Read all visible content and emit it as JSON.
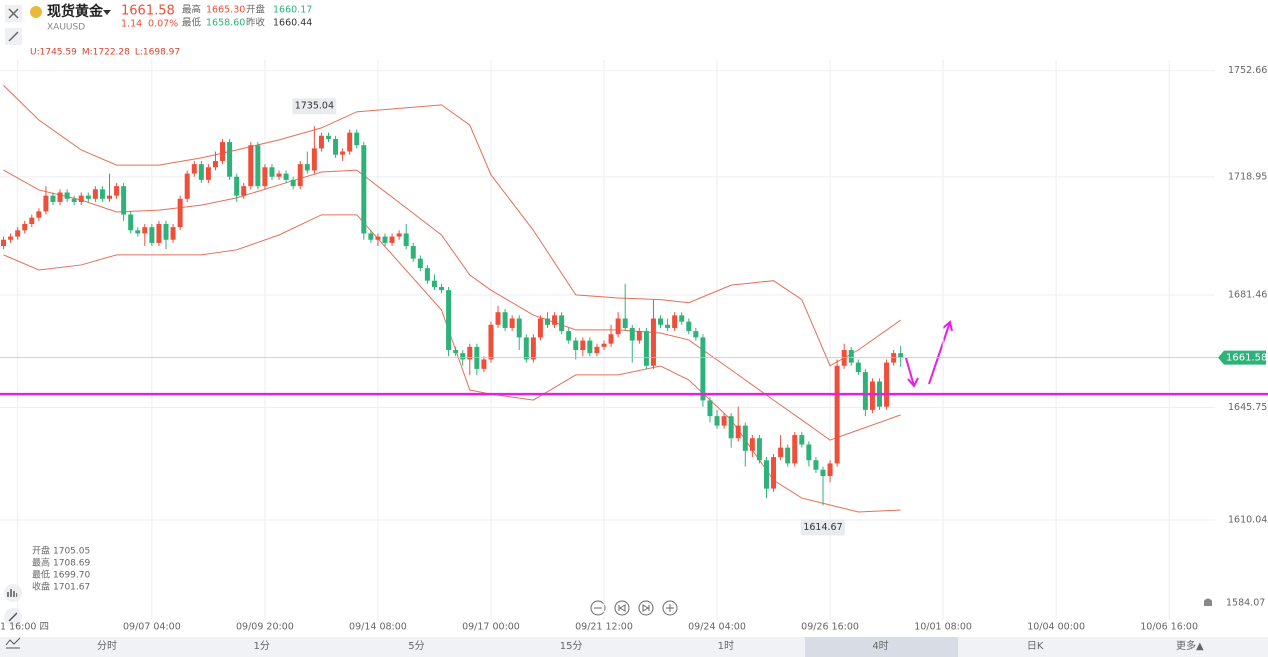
{
  "header": {
    "name": "现货黄金",
    "symbol": "XAUUSD",
    "change": "1.14",
    "change_pct": "0.07%",
    "stats": [
      [
        "最高",
        "1665.30"
      ],
      [
        "开盘",
        "1660.17"
      ],
      [
        "最低",
        "1658.60"
      ],
      [
        "昨收",
        "1660.44"
      ]
    ]
  },
  "boll": [
    "U:1745.59",
    "M:1722.28",
    "L:1698.97"
  ],
  "info": [
    [
      "开盘",
      "1705.05"
    ],
    [
      "最高",
      "1708.69"
    ],
    [
      "最低",
      "1699.70"
    ],
    [
      "收盘",
      "1701.67"
    ]
  ],
  "tabs": [
    "分时",
    "1分",
    "5分",
    "15分",
    "1时",
    "4时",
    "日K",
    "更多▲"
  ],
  "chart_data": {
    "type": "candlestick",
    "up_color": "#ee4f3b",
    "down_color": "#2fb27a",
    "xlim": [
      -0.5,
      170.5
    ],
    "ylim": [
      1578.3,
      1762.4
    ],
    "yticks": [
      1610.04,
      1645.75,
      1681.46,
      1718.95,
      1752.66
    ],
    "xticks": [
      {
        "value": 2,
        "label": "1 16:00 四"
      },
      {
        "value": 21,
        "label": "09/07 04:00"
      },
      {
        "value": 37,
        "label": "09/09 20:00"
      },
      {
        "value": 53,
        "label": "09/14 08:00"
      },
      {
        "value": 69,
        "label": "09/17 00:00"
      },
      {
        "value": 85,
        "label": "09/21 12:00"
      },
      {
        "value": 101,
        "label": "09/24 04:00"
      },
      {
        "value": 117,
        "label": "09/26 16:00"
      },
      {
        "value": 133,
        "label": "10/01 08:00"
      },
      {
        "value": 149,
        "label": "10/04 00:00"
      },
      {
        "value": 165,
        "label": "10/06 16:00"
      }
    ],
    "grid": true,
    "bottom_price": 1584.07,
    "hlines": [
      {
        "value": 1650,
        "color": "#e61ee6"
      }
    ],
    "ohlc": [
      [
        1697,
        1700,
        1696,
        1699
      ],
      [
        1699,
        1701,
        1698,
        1700
      ],
      [
        1700,
        1703,
        1699,
        1702
      ],
      [
        1702,
        1705,
        1701,
        1704
      ],
      [
        1704,
        1707,
        1703,
        1706
      ],
      [
        1706,
        1709,
        1705,
        1708
      ],
      [
        1708,
        1716,
        1707,
        1713
      ],
      [
        1713,
        1714,
        1710,
        1711
      ],
      [
        1711,
        1715,
        1710,
        1714
      ],
      [
        1714,
        1715,
        1711,
        1712
      ],
      [
        1712,
        1713,
        1710,
        1711
      ],
      [
        1711,
        1714,
        1710,
        1713
      ],
      [
        1713,
        1714,
        1711,
        1712
      ],
      [
        1712,
        1716,
        1711,
        1715
      ],
      [
        1715,
        1716,
        1711,
        1712
      ],
      [
        1712,
        1720,
        1711,
        1713
      ],
      [
        1713,
        1717,
        1712,
        1716
      ],
      [
        1716,
        1717,
        1705,
        1707
      ],
      [
        1707,
        1708,
        1701,
        1702
      ],
      [
        1702,
        1703,
        1700,
        1701
      ],
      [
        1701,
        1704,
        1697,
        1703
      ],
      [
        1703,
        1704,
        1697,
        1698
      ],
      [
        1698,
        1705,
        1697,
        1704
      ],
      [
        1704,
        1705,
        1696,
        1699
      ],
      [
        1699,
        1704,
        1698,
        1703
      ],
      [
        1703,
        1713,
        1702,
        1712
      ],
      [
        1712,
        1721,
        1711,
        1720
      ],
      [
        1720,
        1724,
        1719,
        1723
      ],
      [
        1723,
        1724,
        1717,
        1718
      ],
      [
        1718,
        1723,
        1717,
        1722
      ],
      [
        1722,
        1727,
        1721,
        1724
      ],
      [
        1724,
        1731,
        1723,
        1730
      ],
      [
        1730,
        1731,
        1718,
        1719
      ],
      [
        1719,
        1720,
        1711,
        1713
      ],
      [
        1713,
        1717,
        1712,
        1716
      ],
      [
        1716,
        1730,
        1715,
        1729
      ],
      [
        1729,
        1730,
        1715,
        1716
      ],
      [
        1716,
        1723,
        1715,
        1722
      ],
      [
        1722,
        1723,
        1718,
        1719
      ],
      [
        1719,
        1721,
        1718,
        1720
      ],
      [
        1720,
        1721,
        1717,
        1718
      ],
      [
        1718,
        1719,
        1715,
        1716
      ],
      [
        1716,
        1724,
        1715,
        1723
      ],
      [
        1723,
        1727,
        1720,
        1721
      ],
      [
        1721,
        1735.04,
        1720,
        1728
      ],
      [
        1728,
        1733,
        1727,
        1732
      ],
      [
        1732,
        1733,
        1730,
        1731
      ],
      [
        1731,
        1732,
        1725,
        1726
      ],
      [
        1726,
        1728,
        1724,
        1727
      ],
      [
        1727,
        1734,
        1726,
        1733
      ],
      [
        1733,
        1734,
        1728,
        1729
      ],
      [
        1729,
        1730,
        1699,
        1701
      ],
      [
        1701,
        1702,
        1698,
        1699
      ],
      [
        1699,
        1701,
        1697,
        1700
      ],
      [
        1700,
        1701,
        1697,
        1698
      ],
      [
        1698,
        1701,
        1697,
        1700
      ],
      [
        1700,
        1702,
        1699,
        1701
      ],
      [
        1701,
        1704,
        1696,
        1697
      ],
      [
        1697,
        1698,
        1692,
        1693
      ],
      [
        1693,
        1694,
        1689,
        1690
      ],
      [
        1690,
        1691,
        1685,
        1686
      ],
      [
        1686,
        1688,
        1683,
        1684
      ],
      [
        1684,
        1685,
        1682,
        1683
      ],
      [
        1683,
        1684,
        1662,
        1664
      ],
      [
        1664,
        1665,
        1662,
        1663
      ],
      [
        1663,
        1664,
        1659,
        1661
      ],
      [
        1661,
        1666,
        1656,
        1665
      ],
      [
        1665,
        1666,
        1656,
        1658
      ],
      [
        1658,
        1662,
        1657,
        1661
      ],
      [
        1661,
        1673,
        1660,
        1672
      ],
      [
        1672,
        1678,
        1671,
        1676
      ],
      [
        1676,
        1677,
        1670,
        1671
      ],
      [
        1671,
        1675,
        1670,
        1674
      ],
      [
        1674,
        1675,
        1664,
        1668
      ],
      [
        1668,
        1669,
        1660,
        1661
      ],
      [
        1661,
        1669,
        1660,
        1668
      ],
      [
        1668,
        1675,
        1667,
        1674
      ],
      [
        1674,
        1676,
        1671,
        1672
      ],
      [
        1672,
        1676,
        1671,
        1675
      ],
      [
        1675,
        1676,
        1669,
        1670
      ],
      [
        1670,
        1671,
        1666,
        1667
      ],
      [
        1667,
        1668,
        1661,
        1664
      ],
      [
        1664,
        1668,
        1662,
        1667
      ],
      [
        1667,
        1668,
        1662,
        1663
      ],
      [
        1663,
        1666,
        1662,
        1665
      ],
      [
        1665,
        1667,
        1664,
        1666
      ],
      [
        1666,
        1672,
        1665,
        1669
      ],
      [
        1669,
        1676,
        1668,
        1674
      ],
      [
        1674,
        1685,
        1670,
        1671
      ],
      [
        1671,
        1672,
        1660,
        1667
      ],
      [
        1667,
        1671,
        1666,
        1670
      ],
      [
        1670,
        1671,
        1658,
        1659
      ],
      [
        1659,
        1680,
        1658,
        1674
      ],
      [
        1674,
        1675,
        1671,
        1672
      ],
      [
        1672,
        1674,
        1670,
        1671
      ],
      [
        1671,
        1676,
        1670,
        1675
      ],
      [
        1675,
        1676,
        1672,
        1673
      ],
      [
        1673,
        1674,
        1669,
        1670
      ],
      [
        1670,
        1671,
        1667,
        1668
      ],
      [
        1668,
        1669,
        1646,
        1648
      ],
      [
        1648,
        1649,
        1641,
        1643
      ],
      [
        1643,
        1645,
        1639,
        1640
      ],
      [
        1640,
        1644,
        1639,
        1643
      ],
      [
        1643,
        1644,
        1633,
        1636
      ],
      [
        1636,
        1646,
        1635,
        1640
      ],
      [
        1640,
        1641,
        1627,
        1632
      ],
      [
        1632,
        1637,
        1630,
        1636
      ],
      [
        1636,
        1637,
        1628,
        1629
      ],
      [
        1629,
        1630,
        1617,
        1620
      ],
      [
        1620,
        1631,
        1619,
        1630
      ],
      [
        1630,
        1637,
        1629,
        1633
      ],
      [
        1633,
        1634,
        1627,
        1628
      ],
      [
        1628,
        1638,
        1627,
        1637
      ],
      [
        1637,
        1638,
        1633,
        1634
      ],
      [
        1634,
        1635,
        1627,
        1629
      ],
      [
        1629,
        1630,
        1625,
        1626
      ],
      [
        1626,
        1627,
        1614.67,
        1624
      ],
      [
        1624,
        1629,
        1622,
        1628
      ],
      [
        1628,
        1661,
        1627,
        1659
      ],
      [
        1659,
        1666,
        1658,
        1664
      ],
      [
        1664,
        1665,
        1659,
        1660
      ],
      [
        1660,
        1661,
        1656,
        1657
      ],
      [
        1657,
        1658,
        1643,
        1645
      ],
      [
        1645,
        1655,
        1644,
        1654
      ],
      [
        1654,
        1655,
        1645,
        1646
      ],
      [
        1646,
        1661,
        1645,
        1660
      ],
      [
        1660,
        1664,
        1659,
        1663
      ],
      [
        1663,
        1665.3,
        1658.6,
        1661.58
      ]
    ],
    "bands_x": [
      0,
      5,
      11,
      16,
      22,
      28,
      33,
      39,
      45,
      50,
      62,
      66,
      69,
      75,
      81,
      87,
      93,
      97,
      103,
      109,
      113,
      117,
      121,
      127
    ],
    "bands": [
      {
        "color": "#e2705a",
        "values": [
          1748,
          1737,
          1727.5,
          1722.7,
          1722.7,
          1725,
          1727.5,
          1730.7,
          1734.5,
          1739.6,
          1741.8,
          1735.4,
          1719.6,
          1702,
          1681.5,
          1680.5,
          1680,
          1679,
          1684.6,
          1686,
          1680,
          1659,
          1664,
          1673.5
        ]
      },
      {
        "color": "#e2705a",
        "values": [
          1721.1,
          1714.8,
          1711.6,
          1707.8,
          1708.4,
          1710,
          1712.3,
          1716.4,
          1720.5,
          1721.1,
          1700.5,
          1687.8,
          1683,
          1675.1,
          1670.4,
          1670.4,
          1669.4,
          1667.2,
          1657.7,
          1648.1,
          1641.8,
          1635.4,
          1638.6,
          1643.4
        ]
      },
      {
        "color": "#e2705a",
        "values": [
          1694.2,
          1689.4,
          1691,
          1694.2,
          1694.2,
          1694.2,
          1695.8,
          1700.5,
          1706.9,
          1706.9,
          1676.7,
          1651.3,
          1650,
          1648.1,
          1656.1,
          1656.1,
          1658.9,
          1654.5,
          1641.8,
          1622.7,
          1617,
          1614.8,
          1612.6,
          1613.2
        ]
      }
    ]
  }
}
